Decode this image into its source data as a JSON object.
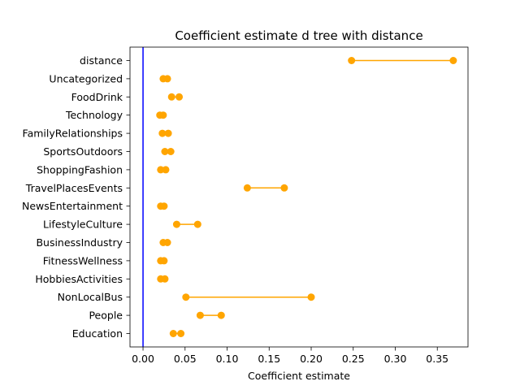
{
  "chart_data": {
    "type": "scatter",
    "title": "Coefficient estimate d tree with distance",
    "xlabel": "Coefficient estimate",
    "ylabel": "",
    "xlim": [
      -0.0155,
      0.3865
    ],
    "xticks": [
      0.0,
      0.05,
      0.1,
      0.15,
      0.2,
      0.25,
      0.3,
      0.35
    ],
    "xtick_labels": [
      "0.00",
      "0.05",
      "0.10",
      "0.15",
      "0.20",
      "0.25",
      "0.30",
      "0.35"
    ],
    "categories": [
      "distance",
      "Uncategorized",
      "FoodDrink",
      "Technology",
      "FamilyRelationships",
      "SportsOutdoors",
      "ShoppingFashion",
      "TravelPlacesEvents",
      "NewsEntertainment",
      "LifestyleCulture",
      "BusinessIndustry",
      "FitnessWellness",
      "HobbiesActivities",
      "NonLocalBus",
      "People",
      "Education"
    ],
    "intervals": [
      [
        0.248,
        0.369
      ],
      [
        0.024,
        0.029
      ],
      [
        0.034,
        0.043
      ],
      [
        0.02,
        0.024
      ],
      [
        0.023,
        0.03
      ],
      [
        0.026,
        0.033
      ],
      [
        0.021,
        0.027
      ],
      [
        0.124,
        0.168
      ],
      [
        0.021,
        0.025
      ],
      [
        0.04,
        0.065
      ],
      [
        0.024,
        0.029
      ],
      [
        0.021,
        0.025
      ],
      [
        0.021,
        0.026
      ],
      [
        0.051,
        0.2
      ],
      [
        0.068,
        0.093
      ],
      [
        0.036,
        0.045
      ]
    ],
    "reference_line_x": 0.0,
    "grid": false,
    "colors": {
      "points": "#FFA500",
      "reference_line": "#0000FF",
      "axes": "#000000"
    }
  }
}
